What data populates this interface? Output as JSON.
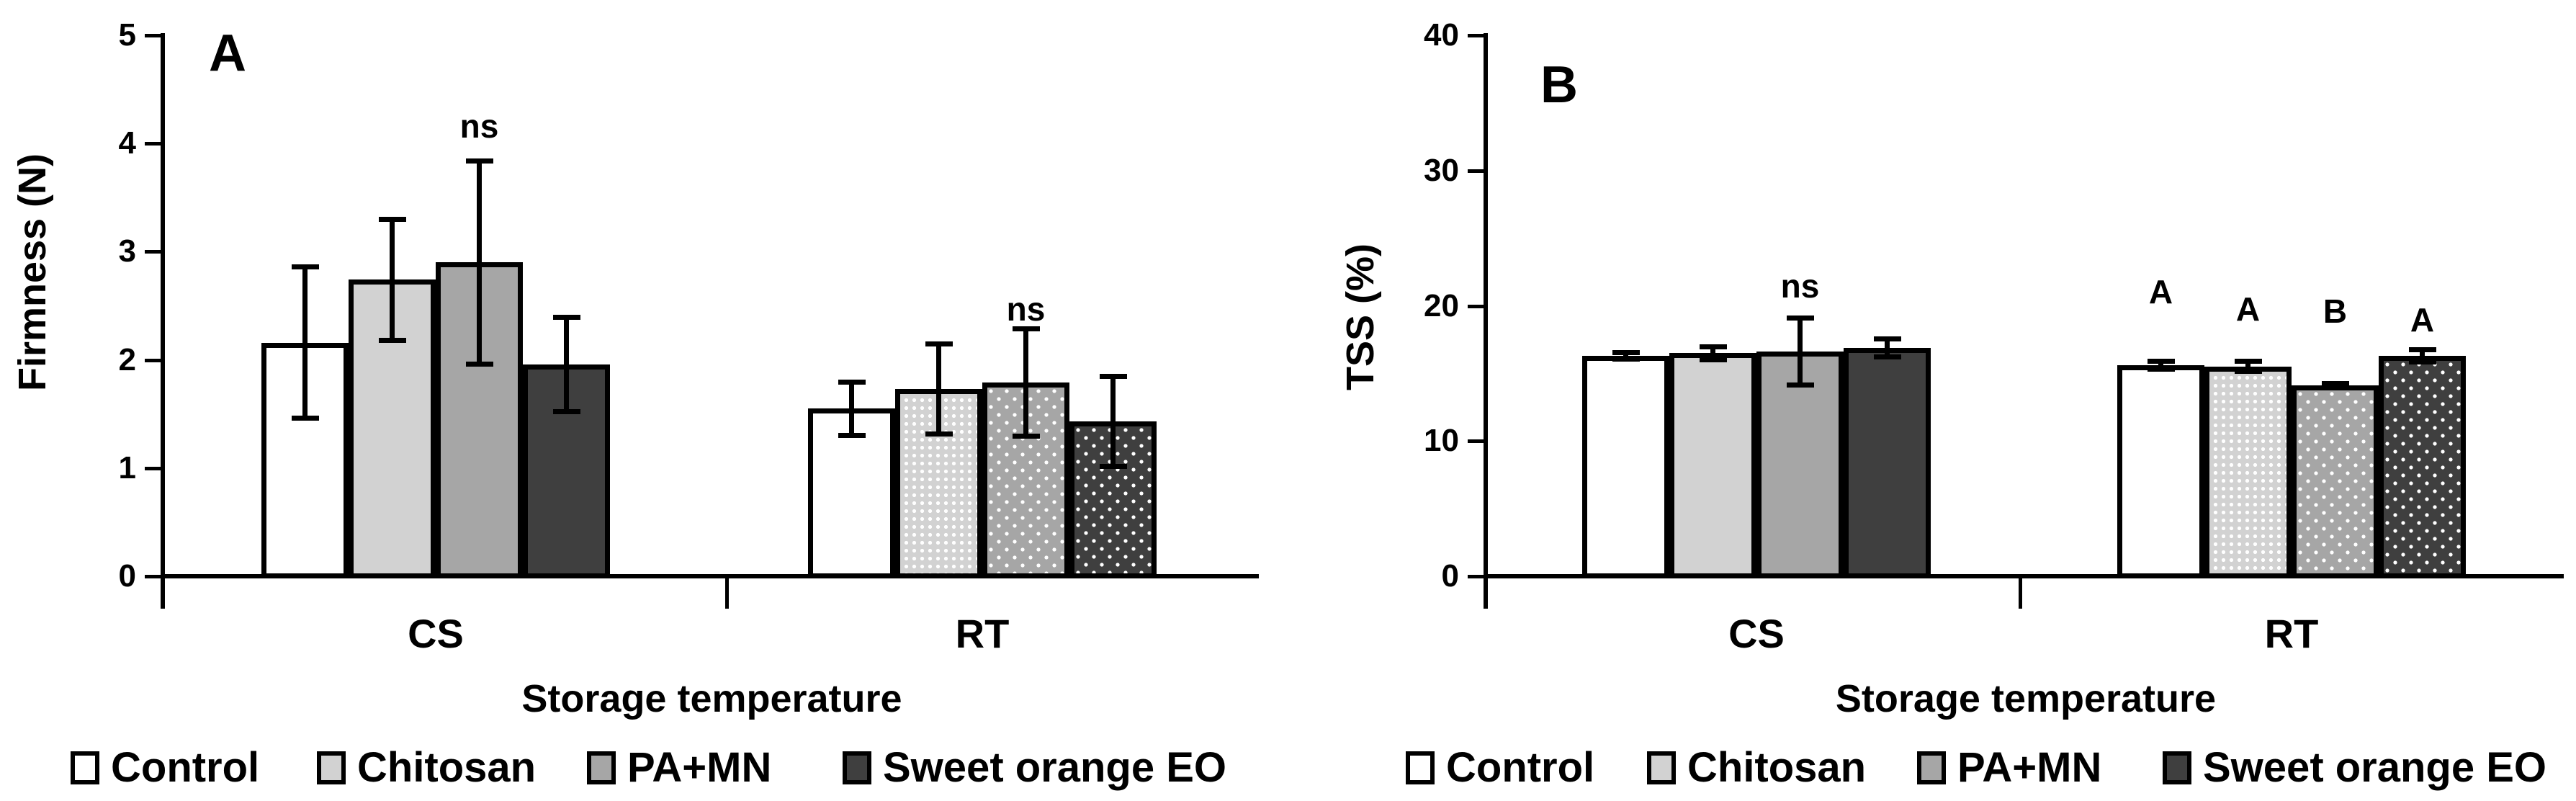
{
  "figure": {
    "background": "#ffffff"
  },
  "chart_data": [
    {
      "type": "bar",
      "panel_label": "A",
      "ylabel": "Firmness (N)",
      "xlabel": "Storage temperature",
      "ylim": [
        0,
        5
      ],
      "yticks": [
        0,
        1,
        2,
        3,
        4,
        5
      ],
      "categories": [
        "CS",
        "RT"
      ],
      "grid": false,
      "legend_position": "bottom",
      "error_bars": true,
      "series": [
        {
          "name": "Control",
          "values": [
            2.16,
            1.55
          ],
          "errors": [
            0.7,
            0.25
          ]
        },
        {
          "name": "Chitosan",
          "values": [
            2.74,
            1.73
          ],
          "errors": [
            0.56,
            0.42
          ]
        },
        {
          "name": "PA+MN",
          "values": [
            2.9,
            1.79
          ],
          "errors": [
            0.94,
            0.5
          ]
        },
        {
          "name": "Sweet orange EO",
          "values": [
            1.96,
            1.43
          ],
          "errors": [
            0.44,
            0.42
          ]
        }
      ],
      "annotations": [
        {
          "text": "ns",
          "category": 0,
          "series": 2
        },
        {
          "text": "ns",
          "category": 1,
          "series": 2
        }
      ]
    },
    {
      "type": "bar",
      "panel_label": "B",
      "ylabel": "TSS (%)",
      "xlabel": "Storage temperature",
      "ylim": [
        0,
        40
      ],
      "yticks": [
        0,
        10,
        20,
        30,
        40
      ],
      "categories": [
        "CS",
        "RT"
      ],
      "grid": false,
      "legend_position": "bottom",
      "error_bars": true,
      "series": [
        {
          "name": "Control",
          "values": [
            16.3,
            15.6
          ],
          "errors": [
            0.25,
            0.3
          ]
        },
        {
          "name": "Chitosan",
          "values": [
            16.5,
            15.5
          ],
          "errors": [
            0.5,
            0.4
          ]
        },
        {
          "name": "PA+MN",
          "values": [
            16.6,
            14.1
          ],
          "errors": [
            2.5,
            0.15
          ]
        },
        {
          "name": "Sweet orange EO",
          "values": [
            16.9,
            16.3
          ],
          "errors": [
            0.7,
            0.5
          ]
        }
      ],
      "annotations": [
        {
          "text": "ns",
          "category": 0,
          "series": 2
        },
        {
          "text": "A",
          "category": 1,
          "series": 0
        },
        {
          "text": "A",
          "category": 1,
          "series": 1
        },
        {
          "text": "B",
          "category": 1,
          "series": 2
        },
        {
          "text": "A",
          "category": 1,
          "series": 3
        }
      ]
    }
  ],
  "legend": {
    "items": [
      {
        "label": "Control",
        "color": "#ffffff"
      },
      {
        "label": "Chitosan",
        "color": "#d2d2d2"
      },
      {
        "label": "PA+MN",
        "color": "#a6a6a6"
      },
      {
        "label": "Sweet orange EO",
        "color": "#3f3f3f"
      }
    ]
  },
  "colors": {
    "axis": "#000000",
    "bar_border": "#000000",
    "error_bar": "#000000"
  }
}
